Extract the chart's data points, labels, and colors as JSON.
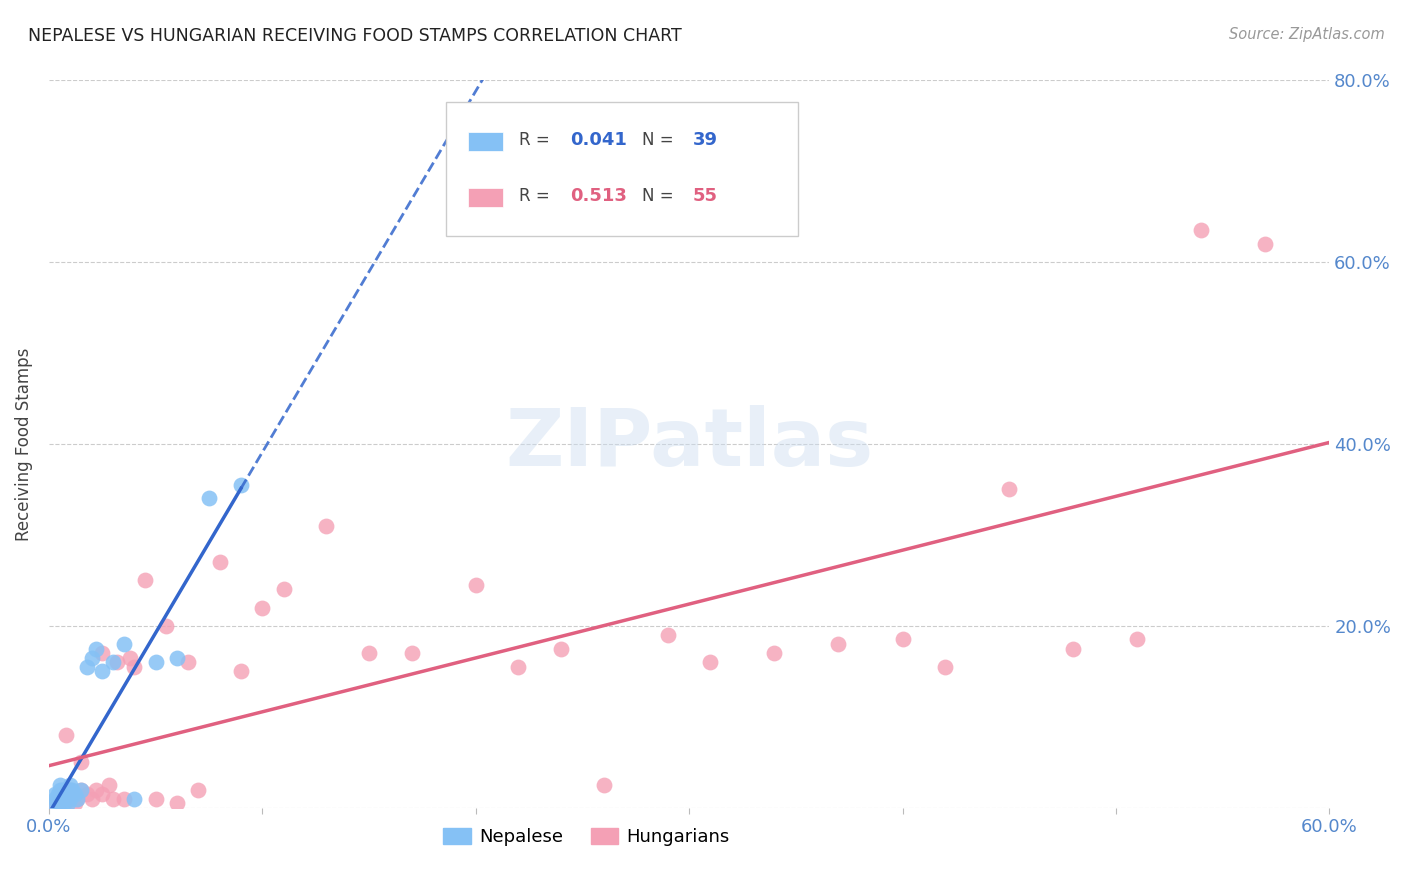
{
  "title": "NEPALESE VS HUNGARIAN RECEIVING FOOD STAMPS CORRELATION CHART",
  "source": "Source: ZipAtlas.com",
  "ylabel": "Receiving Food Stamps",
  "xlim": [
    0.0,
    0.6
  ],
  "ylim": [
    0.0,
    0.8
  ],
  "nepalese_R": 0.041,
  "nepalese_N": 39,
  "hungarian_R": 0.513,
  "hungarian_N": 55,
  "nepalese_color": "#85c1f5",
  "hungarian_color": "#f4a0b5",
  "nepalese_line_color": "#3366cc",
  "hungarian_line_color": "#e06080",
  "nepalese_x": [
    0.002,
    0.003,
    0.003,
    0.004,
    0.004,
    0.004,
    0.005,
    0.005,
    0.005,
    0.005,
    0.005,
    0.006,
    0.006,
    0.006,
    0.007,
    0.007,
    0.007,
    0.008,
    0.008,
    0.009,
    0.009,
    0.01,
    0.01,
    0.01,
    0.011,
    0.012,
    0.013,
    0.015,
    0.018,
    0.02,
    0.022,
    0.025,
    0.03,
    0.035,
    0.04,
    0.05,
    0.06,
    0.075,
    0.09
  ],
  "nepalese_y": [
    0.005,
    0.01,
    0.015,
    0.005,
    0.01,
    0.015,
    0.005,
    0.01,
    0.015,
    0.02,
    0.025,
    0.005,
    0.01,
    0.02,
    0.005,
    0.015,
    0.02,
    0.01,
    0.02,
    0.005,
    0.015,
    0.01,
    0.02,
    0.025,
    0.02,
    0.015,
    0.01,
    0.02,
    0.155,
    0.165,
    0.175,
    0.15,
    0.16,
    0.18,
    0.01,
    0.16,
    0.165,
    0.34,
    0.355
  ],
  "hungarian_x": [
    0.003,
    0.004,
    0.005,
    0.005,
    0.006,
    0.007,
    0.008,
    0.008,
    0.009,
    0.01,
    0.01,
    0.011,
    0.012,
    0.013,
    0.015,
    0.015,
    0.018,
    0.02,
    0.022,
    0.025,
    0.025,
    0.028,
    0.03,
    0.032,
    0.035,
    0.038,
    0.04,
    0.045,
    0.05,
    0.055,
    0.06,
    0.065,
    0.07,
    0.08,
    0.09,
    0.1,
    0.11,
    0.13,
    0.15,
    0.17,
    0.2,
    0.22,
    0.24,
    0.26,
    0.29,
    0.31,
    0.34,
    0.37,
    0.4,
    0.42,
    0.45,
    0.48,
    0.51,
    0.54,
    0.57
  ],
  "hungarian_y": [
    0.005,
    0.01,
    0.005,
    0.015,
    0.01,
    0.01,
    0.015,
    0.08,
    0.01,
    0.01,
    0.02,
    0.015,
    0.005,
    0.01,
    0.02,
    0.05,
    0.015,
    0.01,
    0.02,
    0.015,
    0.17,
    0.025,
    0.01,
    0.16,
    0.01,
    0.165,
    0.155,
    0.25,
    0.01,
    0.2,
    0.005,
    0.16,
    0.02,
    0.27,
    0.15,
    0.22,
    0.24,
    0.31,
    0.17,
    0.17,
    0.245,
    0.155,
    0.175,
    0.025,
    0.19,
    0.16,
    0.17,
    0.18,
    0.185,
    0.155,
    0.35,
    0.175,
    0.185,
    0.635,
    0.62
  ]
}
